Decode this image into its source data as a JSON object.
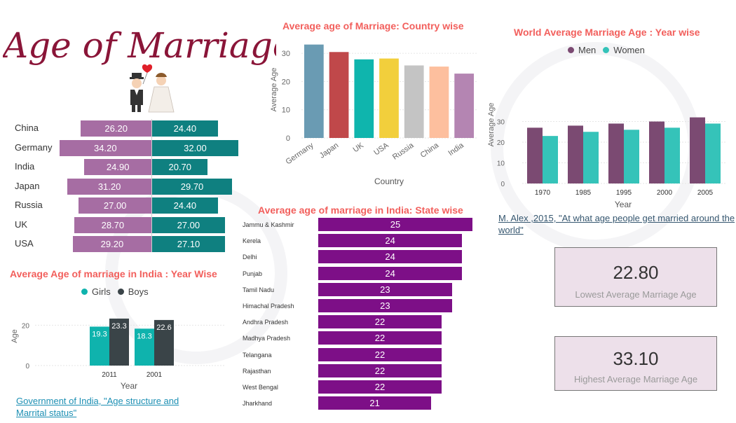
{
  "header": {
    "title": "Age of Marriage"
  },
  "colors": {
    "accent_title": "#f25f5c",
    "women_pyramid": "#a66da3",
    "men_pyramid": "#0f8080",
    "state_bar": "#7d0f87",
    "men": "#7b4a72",
    "women": "#35c3b9",
    "girls": "#0fb3ad",
    "boys": "#3a4448"
  },
  "pyramid": {
    "rows": [
      {
        "country": "China",
        "women": "26.20",
        "men": "24.40"
      },
      {
        "country": "Germany",
        "women": "34.20",
        "men": "32.00"
      },
      {
        "country": "India",
        "women": "24.90",
        "men": "20.70"
      },
      {
        "country": "Japan",
        "women": "31.20",
        "men": "29.70"
      },
      {
        "country": "Russia",
        "women": "27.00",
        "men": "24.40"
      },
      {
        "country": "UK",
        "women": "28.70",
        "men": "27.00"
      },
      {
        "country": "USA",
        "women": "29.20",
        "men": "27.10"
      }
    ]
  },
  "country_chart": {
    "title": "Average age of Marriage: Country wise"
  },
  "world_chart": {
    "title": "World Average Marriage Age : Year wise",
    "legend": [
      "Men",
      "Women"
    ],
    "source": "M. Alex ,2015, \"At what age people get married around the world\""
  },
  "state_chart": {
    "title": "Average age of marriage in India: State wise"
  },
  "india_chart": {
    "title": "Average Age of marriage in India : Year Wise",
    "legend": [
      "Girls",
      "Boys"
    ],
    "source": "Government of India, \"Age structure and Marrital status\""
  },
  "kpis": {
    "lowest": {
      "value": "22.80",
      "label": "Lowest Average Marriage Age"
    },
    "highest": {
      "value": "33.10",
      "label": "Highest Average Marriage Age"
    }
  },
  "chart_data": [
    {
      "type": "bar",
      "title": "Average age of Marriage: Country wise",
      "xlabel": "Country",
      "ylabel": "Average Age",
      "ylim": [
        0,
        35
      ],
      "yticks": [
        0,
        10,
        20,
        30
      ],
      "categories": [
        "Germany",
        "Japan",
        "UK",
        "USA",
        "Russia",
        "China",
        "India"
      ],
      "values": [
        33.1,
        30.45,
        27.85,
        28.15,
        25.7,
        25.3,
        22.8
      ],
      "colors": [
        "#6a9bb3",
        "#c0484a",
        "#0fb5ad",
        "#f2cf3c",
        "#c4c4c4",
        "#fdbf9e",
        "#b485b2"
      ]
    },
    {
      "type": "bar",
      "title": "World Average Marriage Age : Year wise",
      "xlabel": "Year",
      "ylabel": "Average Age",
      "ylim": [
        0,
        35
      ],
      "yticks": [
        0,
        10,
        20,
        30
      ],
      "categories": [
        "1970",
        "1985",
        "1995",
        "2000",
        "2005"
      ],
      "series": [
        {
          "name": "Men",
          "values": [
            27,
            28,
            29,
            30,
            32
          ]
        },
        {
          "name": "Women",
          "values": [
            23,
            25,
            26,
            27,
            29
          ]
        }
      ]
    },
    {
      "type": "bar",
      "title": "Average age of marriage in India: State wise",
      "orientation": "horizontal",
      "categories": [
        "Jammu & Kashmir",
        "Kerela",
        "Delhi",
        "Punjab",
        "Tamil Nadu",
        "Himachal Pradesh",
        "Andhra Pradesh",
        "Madhya Pradesh",
        "Telangana",
        "Rajasthan",
        "West Bengal",
        "Jharkhand"
      ],
      "values": [
        25,
        24,
        24,
        24,
        23,
        23,
        22,
        22,
        22,
        22,
        22,
        21
      ],
      "xlim": [
        0,
        25
      ]
    },
    {
      "type": "bar",
      "title": "Average Age of marriage in India : Year Wise",
      "xlabel": "Year",
      "ylabel": "Age",
      "ylim": [
        0,
        26
      ],
      "yticks": [
        0,
        20
      ],
      "categories": [
        "2011",
        "2001"
      ],
      "series": [
        {
          "name": "Girls",
          "values": [
            19.3,
            18.3
          ]
        },
        {
          "name": "Boys",
          "values": [
            23.3,
            22.6
          ]
        }
      ]
    }
  ]
}
